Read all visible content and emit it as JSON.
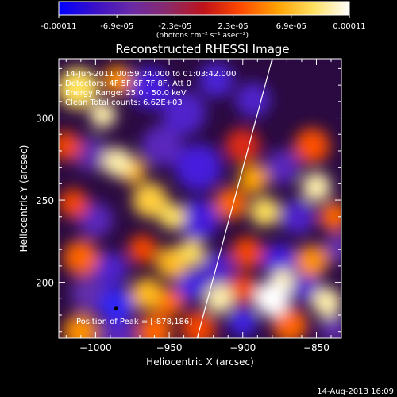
{
  "colorbar": {
    "ticks": [
      "-0.00011",
      "-6.9e-05",
      "-2.3e-05",
      "2.3e-05",
      "6.9e-05",
      "0.00011"
    ],
    "units_label": "(photons cm⁻² s⁻¹ asec⁻²)",
    "colors": [
      "#0000ff",
      "#3a10c8",
      "#6a2aa6",
      "#8a2a6a",
      "#c0121a",
      "#ff4800",
      "#ffa000",
      "#ffe060",
      "#ffffff"
    ]
  },
  "footer": {
    "date": "14-Aug-2013 16:09"
  },
  "chart_data": {
    "type": "heatmap",
    "title": "Reconstructed RHESSI Image",
    "xlabel": "Heliocentric X (arcsec)",
    "ylabel": "Heliocentric Y (arcsec)",
    "xlim": [
      -1025,
      -833
    ],
    "ylim": [
      166,
      336
    ],
    "xticks": [
      -1000,
      -950,
      -900,
      -850
    ],
    "xtick_labels": [
      "−1000",
      "−950",
      "−900",
      "−850"
    ],
    "yticks": [
      200,
      250,
      300
    ],
    "ytick_labels": [
      "200",
      "250",
      "300"
    ],
    "annotations": [
      "14-Jun-2011 00:59:24.000 to 01:03:42.000",
      "Detectors: 4F 5F 6F 7F 8F, Att 0",
      "Energy Range: 25.0 - 50.0 keV",
      "Clean    Total counts: 6.62E+03"
    ],
    "peak_label": "Position of Peak = [-878,186]",
    "peak": [
      -878,
      186
    ],
    "limb_line": [
      [
        -931,
        166
      ],
      [
        -880,
        336
      ]
    ],
    "colorbar_range": [
      -0.00011,
      0.00011
    ],
    "blobs": [
      {
        "x": -1012,
        "y": 318,
        "v": 0.9,
        "r": 14
      },
      {
        "x": -995,
        "y": 302,
        "v": 0.95,
        "r": 9
      },
      {
        "x": -985,
        "y": 323,
        "v": 0.7,
        "r": 10
      },
      {
        "x": -963,
        "y": 318,
        "v": -0.6,
        "r": 14
      },
      {
        "x": -940,
        "y": 303,
        "v": -0.5,
        "r": 15
      },
      {
        "x": -918,
        "y": 323,
        "v": -0.55,
        "r": 12
      },
      {
        "x": -893,
        "y": 311,
        "v": -0.5,
        "r": 12
      },
      {
        "x": -1020,
        "y": 283,
        "v": 0.5,
        "r": 10
      },
      {
        "x": -1003,
        "y": 278,
        "v": -0.3,
        "r": 12
      },
      {
        "x": -985,
        "y": 273,
        "v": 0.95,
        "r": 10
      },
      {
        "x": -975,
        "y": 268,
        "v": 0.8,
        "r": 9
      },
      {
        "x": -955,
        "y": 283,
        "v": -0.4,
        "r": 14
      },
      {
        "x": -930,
        "y": 270,
        "v": -0.6,
        "r": 16
      },
      {
        "x": -900,
        "y": 283,
        "v": 0.4,
        "r": 12
      },
      {
        "x": -893,
        "y": 263,
        "v": 0.75,
        "r": 10
      },
      {
        "x": -873,
        "y": 270,
        "v": -0.4,
        "r": 12
      },
      {
        "x": -853,
        "y": 283,
        "v": 0.55,
        "r": 12
      },
      {
        "x": -850,
        "y": 258,
        "v": 0.95,
        "r": 10
      },
      {
        "x": -1015,
        "y": 248,
        "v": 0.5,
        "r": 10
      },
      {
        "x": -1000,
        "y": 238,
        "v": -0.4,
        "r": 12
      },
      {
        "x": -963,
        "y": 250,
        "v": 0.85,
        "r": 12
      },
      {
        "x": -948,
        "y": 240,
        "v": 0.9,
        "r": 9
      },
      {
        "x": -930,
        "y": 238,
        "v": -0.6,
        "r": 14
      },
      {
        "x": -908,
        "y": 248,
        "v": 0.6,
        "r": 11
      },
      {
        "x": -885,
        "y": 243,
        "v": 0.9,
        "r": 10
      },
      {
        "x": -863,
        "y": 240,
        "v": -0.5,
        "r": 12
      },
      {
        "x": -838,
        "y": 240,
        "v": 0.6,
        "r": 10
      },
      {
        "x": -1010,
        "y": 215,
        "v": 0.6,
        "r": 12
      },
      {
        "x": -990,
        "y": 208,
        "v": -0.5,
        "r": 12
      },
      {
        "x": -968,
        "y": 220,
        "v": 0.5,
        "r": 10
      },
      {
        "x": -948,
        "y": 212,
        "v": 0.8,
        "r": 11
      },
      {
        "x": -935,
        "y": 218,
        "v": 0.9,
        "r": 9
      },
      {
        "x": -918,
        "y": 208,
        "v": -0.5,
        "r": 12
      },
      {
        "x": -897,
        "y": 218,
        "v": 0.5,
        "r": 11
      },
      {
        "x": -875,
        "y": 213,
        "v": -0.6,
        "r": 12
      },
      {
        "x": -853,
        "y": 213,
        "v": 0.7,
        "r": 11
      },
      {
        "x": -835,
        "y": 221,
        "v": -0.3,
        "r": 10
      },
      {
        "x": -1005,
        "y": 193,
        "v": -0.3,
        "r": 12
      },
      {
        "x": -986,
        "y": 186,
        "v": -0.9,
        "r": 12
      },
      {
        "x": -965,
        "y": 193,
        "v": 0.8,
        "r": 11
      },
      {
        "x": -950,
        "y": 188,
        "v": 0.6,
        "r": 10
      },
      {
        "x": -935,
        "y": 198,
        "v": -0.7,
        "r": 10
      },
      {
        "x": -916,
        "y": 190,
        "v": 0.95,
        "r": 10
      },
      {
        "x": -900,
        "y": 196,
        "v": 0.5,
        "r": 10
      },
      {
        "x": -880,
        "y": 190,
        "v": 1.0,
        "r": 12
      },
      {
        "x": -873,
        "y": 201,
        "v": 0.95,
        "r": 8
      },
      {
        "x": -858,
        "y": 198,
        "v": -0.5,
        "r": 11
      },
      {
        "x": -843,
        "y": 188,
        "v": 0.95,
        "r": 10
      },
      {
        "x": -1010,
        "y": 170,
        "v": 0.7,
        "r": 12
      },
      {
        "x": -985,
        "y": 168,
        "v": -0.4,
        "r": 12
      },
      {
        "x": -960,
        "y": 170,
        "v": 0.6,
        "r": 12
      },
      {
        "x": -930,
        "y": 172,
        "v": 0.5,
        "r": 12
      },
      {
        "x": -900,
        "y": 176,
        "v": -0.7,
        "r": 10
      },
      {
        "x": -868,
        "y": 174,
        "v": 0.6,
        "r": 12
      },
      {
        "x": -838,
        "y": 172,
        "v": -0.3,
        "r": 10
      }
    ]
  }
}
